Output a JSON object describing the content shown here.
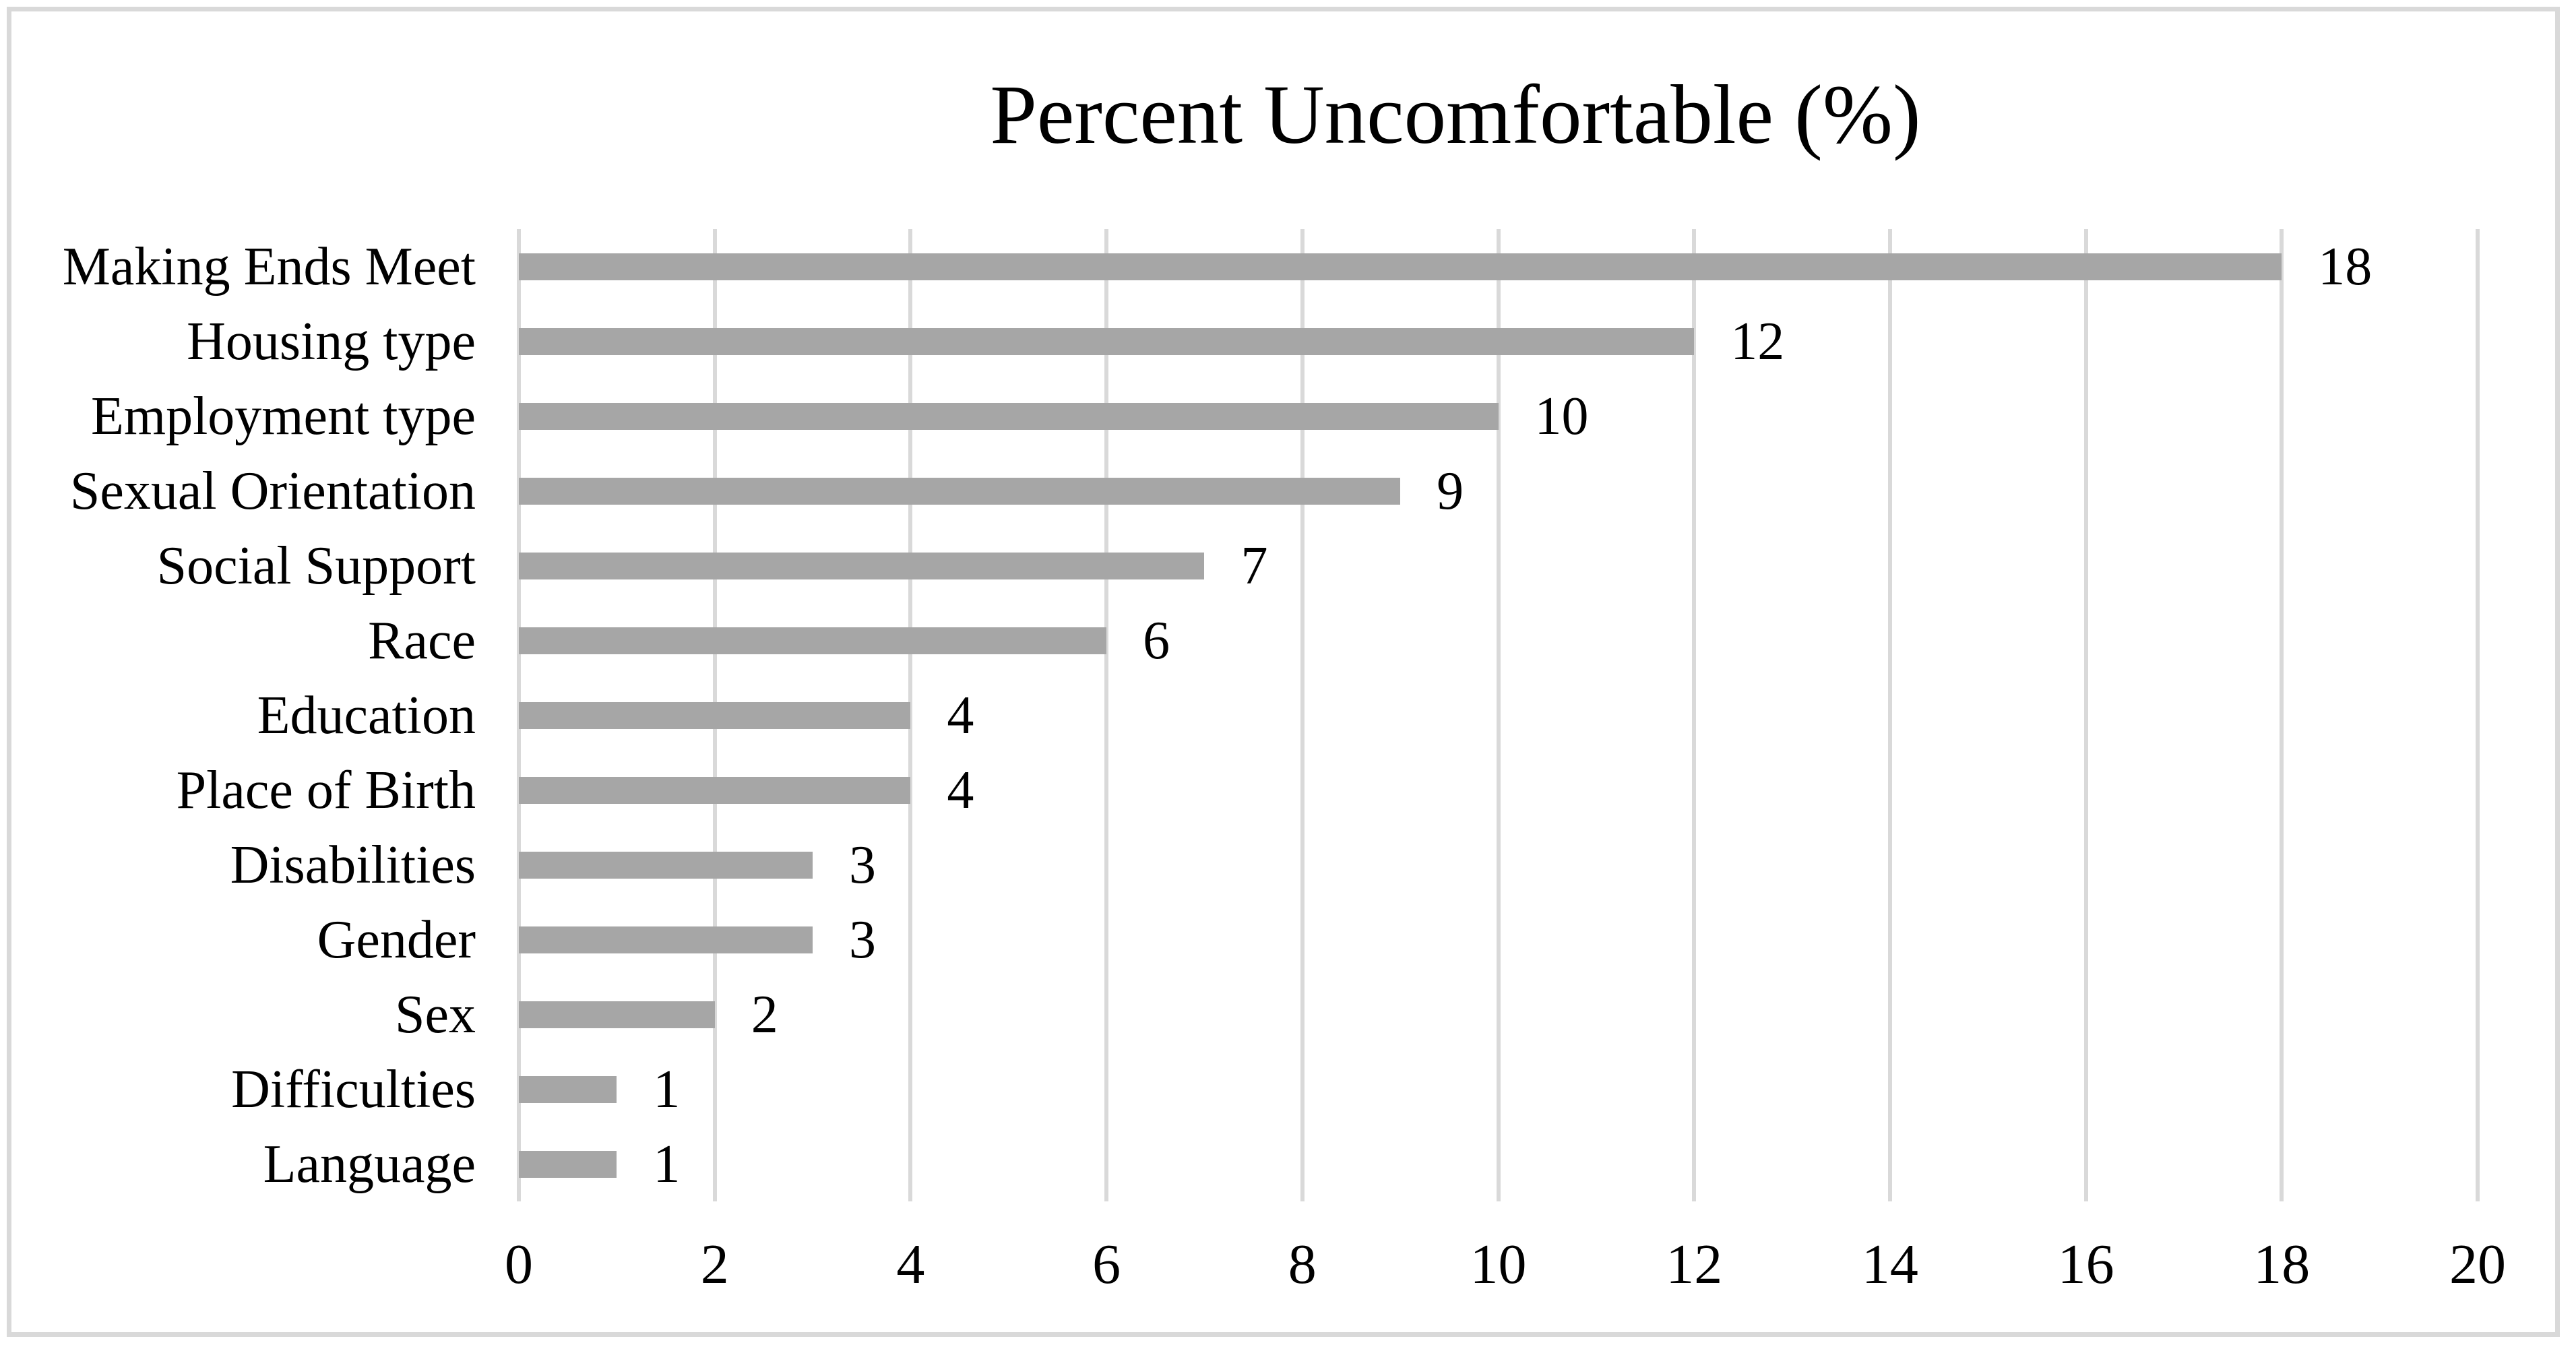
{
  "chart_data": {
    "type": "bar",
    "orientation": "horizontal",
    "title": "Percent Uncomfortable (%)",
    "categories": [
      "Making Ends Meet",
      "Housing type",
      "Employment type",
      "Sexual Orientation",
      "Social Support",
      "Race",
      "Education",
      "Place of Birth",
      "Disabilities",
      "Gender",
      "Sex",
      "Difficulties",
      "Language"
    ],
    "values": [
      18,
      12,
      10,
      9,
      7,
      6,
      4,
      4,
      3,
      3,
      2,
      1,
      1
    ],
    "data_labels": [
      "18",
      "12",
      "10",
      "9",
      "7",
      "6",
      "4",
      "4",
      "3",
      "3",
      "2",
      "1",
      "1"
    ],
    "xlabel": "",
    "ylabel": "",
    "xlim": [
      0,
      20
    ],
    "xticks": [
      0,
      2,
      4,
      6,
      8,
      10,
      12,
      14,
      16,
      18,
      20
    ],
    "xtick_labels": [
      "0",
      "2",
      "4",
      "6",
      "8",
      "10",
      "12",
      "14",
      "16",
      "18",
      "20"
    ],
    "grid": "vertical-only",
    "legend_position": "none",
    "colors": {
      "bar_fill": "#a6a6a6",
      "gridline": "#d9d9d9",
      "frame_border": "#d9d9d9",
      "text": "#000000",
      "background": "#ffffff"
    }
  }
}
